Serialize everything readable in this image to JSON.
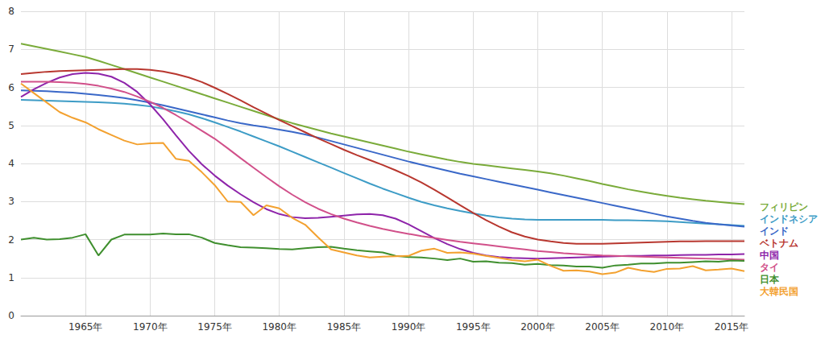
{
  "chart_data": {
    "type": "line",
    "x": [
      1960,
      1961,
      1962,
      1963,
      1964,
      1965,
      1966,
      1967,
      1968,
      1969,
      1970,
      1971,
      1972,
      1973,
      1974,
      1975,
      1976,
      1977,
      1978,
      1979,
      1980,
      1981,
      1982,
      1983,
      1984,
      1985,
      1986,
      1987,
      1988,
      1989,
      1990,
      1991,
      1992,
      1993,
      1994,
      1995,
      1996,
      1997,
      1998,
      1999,
      2000,
      2001,
      2002,
      2003,
      2004,
      2005,
      2006,
      2007,
      2008,
      2009,
      2010,
      2011,
      2012,
      2013,
      2014,
      2015,
      2016
    ],
    "xlim": [
      1960,
      2016
    ],
    "xticks": [
      {
        "value": 1965,
        "label": "1965年"
      },
      {
        "value": 1970,
        "label": "1970年"
      },
      {
        "value": 1975,
        "label": "1975年"
      },
      {
        "value": 1980,
        "label": "1980年"
      },
      {
        "value": 1985,
        "label": "1985年"
      },
      {
        "value": 1990,
        "label": "1990年"
      },
      {
        "value": 1995,
        "label": "1995年"
      },
      {
        "value": 2000,
        "label": "2000年"
      },
      {
        "value": 2005,
        "label": "2005年"
      },
      {
        "value": 2010,
        "label": "2010年"
      },
      {
        "value": 2015,
        "label": "2015年"
      }
    ],
    "ylim": [
      0,
      8
    ],
    "yticks": [
      0,
      1,
      2,
      3,
      4,
      5,
      6,
      7,
      8
    ],
    "grid": true,
    "legend": "right",
    "series": [
      {
        "name": "フィリピン",
        "color": "#7aab3a",
        "values": [
          7.15,
          7.08,
          7.01,
          6.94,
          6.87,
          6.8,
          6.7,
          6.59,
          6.48,
          6.37,
          6.26,
          6.15,
          6.04,
          5.93,
          5.82,
          5.71,
          5.6,
          5.49,
          5.38,
          5.27,
          5.16,
          5.06,
          4.97,
          4.88,
          4.79,
          4.71,
          4.63,
          4.55,
          4.47,
          4.39,
          4.31,
          4.24,
          4.17,
          4.1,
          4.04,
          3.99,
          3.95,
          3.91,
          3.87,
          3.83,
          3.79,
          3.74,
          3.68,
          3.61,
          3.54,
          3.46,
          3.39,
          3.32,
          3.26,
          3.2,
          3.15,
          3.1,
          3.06,
          3.02,
          2.99,
          2.96,
          2.93
        ]
      },
      {
        "name": "インドネシア",
        "color": "#3d9cc6",
        "values": [
          5.67,
          5.66,
          5.65,
          5.64,
          5.63,
          5.62,
          5.61,
          5.59,
          5.57,
          5.54,
          5.5,
          5.44,
          5.37,
          5.29,
          5.19,
          5.08,
          4.96,
          4.84,
          4.71,
          4.58,
          4.45,
          4.31,
          4.17,
          4.03,
          3.89,
          3.75,
          3.61,
          3.47,
          3.34,
          3.22,
          3.1,
          2.99,
          2.9,
          2.82,
          2.75,
          2.69,
          2.63,
          2.58,
          2.55,
          2.53,
          2.52,
          2.52,
          2.52,
          2.52,
          2.52,
          2.52,
          2.51,
          2.51,
          2.5,
          2.49,
          2.48,
          2.46,
          2.44,
          2.42,
          2.4,
          2.38,
          2.36
        ]
      },
      {
        "name": "インド",
        "color": "#3a68c8",
        "values": [
          5.92,
          5.91,
          5.9,
          5.88,
          5.86,
          5.83,
          5.8,
          5.76,
          5.72,
          5.66,
          5.6,
          5.53,
          5.45,
          5.37,
          5.29,
          5.21,
          5.13,
          5.06,
          5.0,
          4.95,
          4.89,
          4.83,
          4.76,
          4.68,
          4.59,
          4.5,
          4.41,
          4.32,
          4.23,
          4.14,
          4.05,
          3.97,
          3.89,
          3.81,
          3.73,
          3.66,
          3.59,
          3.52,
          3.45,
          3.38,
          3.31,
          3.24,
          3.17,
          3.1,
          3.03,
          2.96,
          2.89,
          2.82,
          2.75,
          2.68,
          2.61,
          2.55,
          2.49,
          2.44,
          2.4,
          2.37,
          2.34
        ]
      },
      {
        "name": "ベトナム",
        "color": "#b8372f",
        "values": [
          6.35,
          6.38,
          6.41,
          6.43,
          6.44,
          6.45,
          6.46,
          6.47,
          6.48,
          6.48,
          6.46,
          6.42,
          6.35,
          6.26,
          6.14,
          5.99,
          5.83,
          5.66,
          5.48,
          5.31,
          5.14,
          4.98,
          4.82,
          4.66,
          4.51,
          4.36,
          4.22,
          4.09,
          3.96,
          3.82,
          3.67,
          3.5,
          3.31,
          3.11,
          2.9,
          2.7,
          2.51,
          2.34,
          2.19,
          2.08,
          2.0,
          1.95,
          1.91,
          1.89,
          1.89,
          1.89,
          1.9,
          1.91,
          1.92,
          1.93,
          1.94,
          1.95,
          1.95,
          1.96,
          1.96,
          1.96,
          1.96
        ]
      },
      {
        "name": "中国",
        "color": "#8e24aa",
        "values": [
          5.75,
          5.95,
          6.12,
          6.26,
          6.35,
          6.38,
          6.36,
          6.28,
          6.12,
          5.88,
          5.55,
          5.16,
          4.74,
          4.33,
          3.98,
          3.68,
          3.42,
          3.19,
          2.98,
          2.8,
          2.67,
          2.59,
          2.56,
          2.57,
          2.6,
          2.63,
          2.66,
          2.67,
          2.64,
          2.55,
          2.4,
          2.22,
          2.04,
          1.88,
          1.75,
          1.65,
          1.58,
          1.54,
          1.52,
          1.51,
          1.5,
          1.51,
          1.52,
          1.53,
          1.54,
          1.55,
          1.56,
          1.57,
          1.57,
          1.58,
          1.58,
          1.59,
          1.6,
          1.6,
          1.61,
          1.61,
          1.62
        ]
      },
      {
        "name": "タイ",
        "color": "#d1508a",
        "values": [
          6.15,
          6.15,
          6.15,
          6.14,
          6.12,
          6.09,
          6.04,
          5.97,
          5.88,
          5.76,
          5.62,
          5.46,
          5.27,
          5.07,
          4.86,
          4.65,
          4.4,
          4.14,
          3.89,
          3.64,
          3.4,
          3.18,
          2.98,
          2.81,
          2.67,
          2.55,
          2.45,
          2.36,
          2.28,
          2.21,
          2.15,
          2.09,
          2.04,
          1.99,
          1.94,
          1.9,
          1.86,
          1.82,
          1.78,
          1.74,
          1.7,
          1.67,
          1.64,
          1.62,
          1.6,
          1.58,
          1.57,
          1.56,
          1.55,
          1.54,
          1.53,
          1.52,
          1.51,
          1.5,
          1.49,
          1.48,
          1.47
        ]
      },
      {
        "name": "日本",
        "color": "#3f8f2e",
        "values": [
          2.0,
          2.05,
          2.0,
          2.01,
          2.05,
          2.14,
          1.58,
          2.0,
          2.13,
          2.13,
          2.13,
          2.16,
          2.14,
          2.14,
          2.05,
          1.91,
          1.85,
          1.8,
          1.79,
          1.77,
          1.75,
          1.74,
          1.77,
          1.8,
          1.81,
          1.76,
          1.72,
          1.69,
          1.66,
          1.57,
          1.54,
          1.53,
          1.5,
          1.46,
          1.5,
          1.42,
          1.43,
          1.39,
          1.38,
          1.34,
          1.36,
          1.33,
          1.32,
          1.29,
          1.29,
          1.26,
          1.32,
          1.34,
          1.37,
          1.37,
          1.39,
          1.39,
          1.41,
          1.43,
          1.42,
          1.45,
          1.44
        ]
      },
      {
        "name": "大韓民国",
        "color": "#f3a12f",
        "values": [
          6.1,
          5.85,
          5.6,
          5.35,
          5.2,
          5.08,
          4.9,
          4.75,
          4.6,
          4.5,
          4.53,
          4.54,
          4.12,
          4.07,
          3.77,
          3.43,
          3.0,
          2.99,
          2.64,
          2.9,
          2.82,
          2.57,
          2.39,
          2.06,
          1.74,
          1.66,
          1.58,
          1.53,
          1.55,
          1.56,
          1.57,
          1.71,
          1.76,
          1.65,
          1.66,
          1.63,
          1.57,
          1.52,
          1.46,
          1.43,
          1.47,
          1.31,
          1.18,
          1.19,
          1.16,
          1.09,
          1.13,
          1.26,
          1.19,
          1.15,
          1.23,
          1.24,
          1.3,
          1.19,
          1.21,
          1.24,
          1.17
        ]
      }
    ]
  }
}
